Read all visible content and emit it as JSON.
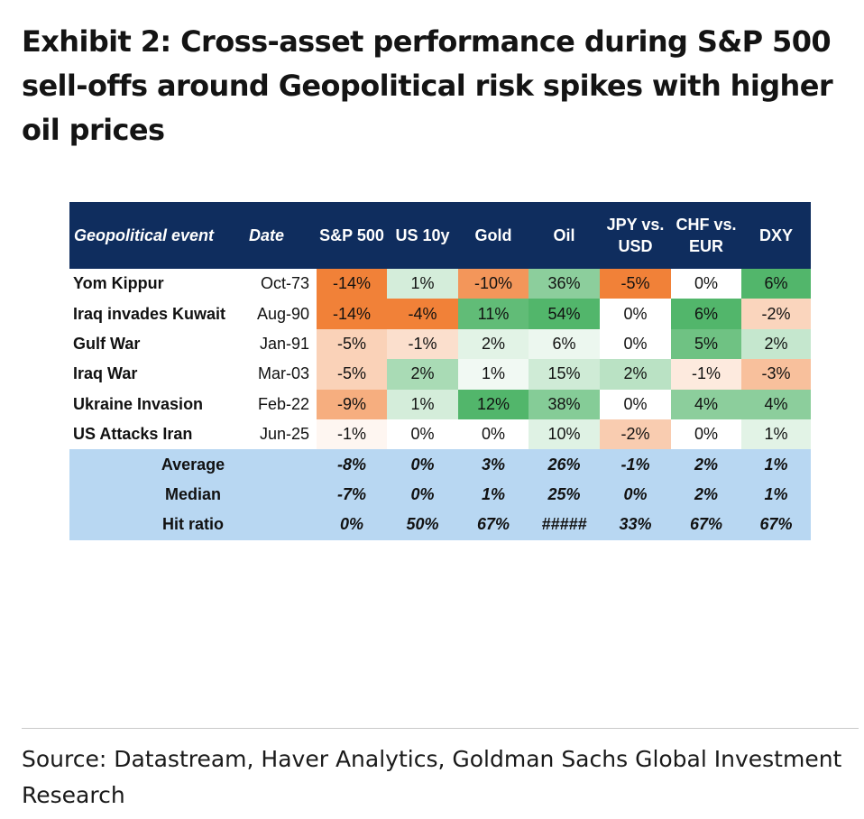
{
  "title": "Exhibit 2: Cross-asset performance during S&P 500 sell-offs around Geopolitical risk spikes with higher oil prices",
  "source": "Source: Datastream, Haver Analytics, Goldman Sachs Global Investment Research",
  "colors": {
    "header_bg": "#0f2d5e",
    "summary_bg": "#b8d7f2",
    "negative": "#f07a2e",
    "positive": "#3fae5a"
  },
  "chart_data": {
    "type": "table",
    "columns": [
      {
        "key": "event",
        "label": "Geopolitical event"
      },
      {
        "key": "date",
        "label": "Date"
      },
      {
        "key": "sp500",
        "label": "S&P 500"
      },
      {
        "key": "us10y",
        "label": "US 10y"
      },
      {
        "key": "gold",
        "label": "Gold"
      },
      {
        "key": "oil",
        "label": "Oil"
      },
      {
        "key": "jpyusd",
        "label": "JPY vs. USD"
      },
      {
        "key": "chfeur",
        "label": "CHF vs. EUR"
      },
      {
        "key": "dxy",
        "label": "DXY"
      }
    ],
    "rows": [
      {
        "event": "Yom Kippur",
        "date": "Oct-73",
        "values": [
          "-14%",
          "1%",
          "-10%",
          "36%",
          "-5%",
          "0%",
          "6%"
        ]
      },
      {
        "event": "Iraq invades Kuwait",
        "date": "Aug-90",
        "values": [
          "-14%",
          "-4%",
          "11%",
          "54%",
          "0%",
          "6%",
          "-2%"
        ]
      },
      {
        "event": "Gulf War",
        "date": "Jan-91",
        "values": [
          "-5%",
          "-1%",
          "2%",
          "6%",
          "0%",
          "5%",
          "2%"
        ]
      },
      {
        "event": "Iraq War",
        "date": "Mar-03",
        "values": [
          "-5%",
          "2%",
          "1%",
          "15%",
          "2%",
          "-1%",
          "-3%"
        ]
      },
      {
        "event": "Ukraine Invasion",
        "date": "Feb-22",
        "values": [
          "-9%",
          "1%",
          "12%",
          "38%",
          "0%",
          "4%",
          "4%"
        ]
      },
      {
        "event": "US Attacks Iran",
        "date": "Jun-25",
        "values": [
          "-1%",
          "0%",
          "0%",
          "10%",
          "-2%",
          "0%",
          "1%"
        ]
      }
    ],
    "summary": [
      {
        "label": "Average",
        "values": [
          "-8%",
          "0%",
          "3%",
          "26%",
          "-1%",
          "2%",
          "1%"
        ]
      },
      {
        "label": "Median",
        "values": [
          "-7%",
          "0%",
          "1%",
          "25%",
          "0%",
          "2%",
          "1%"
        ]
      },
      {
        "label": "Hit ratio",
        "values": [
          "0%",
          "50%",
          "67%",
          "#####",
          "33%",
          "67%",
          "67%"
        ]
      }
    ]
  }
}
